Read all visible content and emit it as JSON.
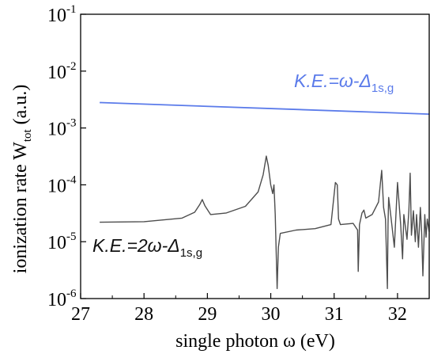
{
  "chart_data": {
    "type": "line",
    "xlabel": "single photon ω (eV)",
    "ylabel_main": "ionization rate W",
    "ylabel_sub": "tot",
    "ylabel_tail": " (a.u.)",
    "xlim": [
      27,
      32.5
    ],
    "ylim": [
      1e-06,
      0.1
    ],
    "yscale": "log",
    "x_ticks": [
      27,
      28,
      29,
      30,
      31,
      32
    ],
    "y_ticks": [
      {
        "value": 1e-06,
        "base": "10",
        "exp": "-6"
      },
      {
        "value": 1e-05,
        "base": "10",
        "exp": "-5"
      },
      {
        "value": 0.0001,
        "base": "10",
        "exp": "-4"
      },
      {
        "value": 0.001,
        "base": "10",
        "exp": "-3"
      },
      {
        "value": 0.01,
        "base": "10",
        "exp": "-2"
      },
      {
        "value": 0.1,
        "base": "10",
        "exp": "-1"
      }
    ],
    "series": [
      {
        "label_main": "K.E.=ω-Δ",
        "label_sub": "1s,g",
        "color": "#5b7bea",
        "x": [
          27.3,
          32.5
        ],
        "y": [
          0.0028,
          0.00175
        ]
      },
      {
        "label_main": "K.E.=2ω-Δ",
        "label_sub": "1s,g",
        "color": "#4d4d4d",
        "x": [
          27.3,
          28.0,
          28.6,
          28.8,
          28.88,
          28.92,
          28.96,
          29.05,
          29.3,
          29.6,
          29.8,
          29.88,
          29.93,
          29.96,
          30.0,
          30.03,
          30.05,
          30.07,
          30.1,
          30.12,
          30.15,
          30.4,
          30.7,
          30.95,
          31.02,
          31.05,
          31.07,
          31.1,
          31.3,
          31.37,
          31.38,
          31.4,
          31.44,
          31.47,
          31.5,
          31.6,
          31.7,
          31.75,
          31.78,
          31.81,
          31.84,
          31.85,
          31.86,
          31.9,
          31.95,
          32.0,
          32.05,
          32.08,
          32.1,
          32.15,
          32.18,
          32.2,
          32.22,
          32.25,
          32.28,
          32.3,
          32.33,
          32.36,
          32.38,
          32.4,
          32.43,
          32.45,
          32.47,
          32.5
        ],
        "y": [
          2.2e-05,
          2.25e-05,
          2.6e-05,
          3.3e-05,
          4.5e-05,
          5.5e-05,
          4.3e-05,
          3e-05,
          3.2e-05,
          4.2e-05,
          7.5e-05,
          0.00015,
          0.00032,
          0.00022,
          0.0001,
          7e-05,
          0.0001,
          3e-05,
          1.5e-06,
          8e-06,
          1.4e-05,
          1.6e-05,
          1.7e-05,
          2e-05,
          0.00011,
          0.0001,
          2.5e-05,
          2e-05,
          2.1e-05,
          1.6e-05,
          3e-06,
          2e-05,
          3.2e-05,
          3.6e-05,
          2.6e-05,
          3e-05,
          5e-05,
          0.00018,
          4e-05,
          2.5e-05,
          1.5e-06,
          2e-05,
          6e-05,
          2.5e-05,
          8e-06,
          0.00011,
          2e-05,
          5e-06,
          3e-05,
          1.1e-05,
          3.6e-05,
          0.00016,
          1.3e-05,
          3.5e-05,
          1e-05,
          3e-05,
          8e-06,
          4e-05,
          1.5e-05,
          2.5e-06,
          3e-05,
          1.2e-05,
          2.5e-05,
          1.5e-05
        ]
      }
    ]
  }
}
